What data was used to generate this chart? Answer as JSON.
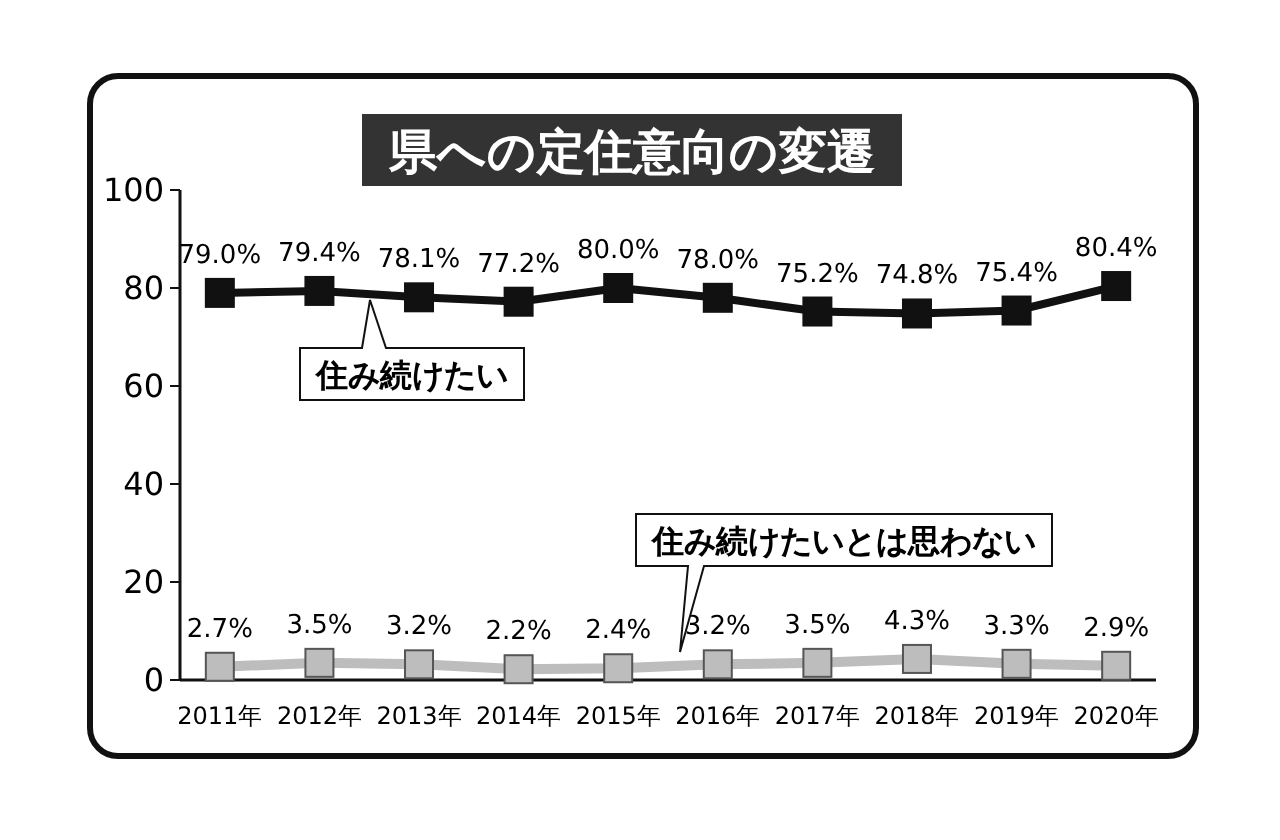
{
  "chart_data": {
    "type": "line",
    "title": "県への定住意向の変遷",
    "categories": [
      "2011年",
      "2012年",
      "2013年",
      "2014年",
      "2015年",
      "2016年",
      "2017年",
      "2018年",
      "2019年",
      "2020年"
    ],
    "ylim": [
      0,
      100
    ],
    "yticks": [
      0,
      20,
      40,
      60,
      80,
      100
    ],
    "grid": false,
    "marker": "square",
    "line_style": "solid",
    "series": [
      {
        "name": "住み続けたい",
        "color": "#111111",
        "values": [
          79.0,
          79.4,
          78.1,
          77.2,
          80.0,
          78.0,
          75.2,
          74.8,
          75.4,
          80.4
        ],
        "value_labels": [
          "79.0%",
          "79.4%",
          "78.1%",
          "77.2%",
          "80.0%",
          "78.0%",
          "75.2%",
          "74.8%",
          "75.4%",
          "80.4%"
        ]
      },
      {
        "name": "住み続けたいとは思わない",
        "color": "#bdbdbd",
        "values": [
          2.7,
          3.5,
          3.2,
          2.2,
          2.4,
          3.2,
          3.5,
          4.3,
          3.3,
          2.9
        ],
        "value_labels": [
          "2.7%",
          "3.5%",
          "3.2%",
          "2.2%",
          "2.4%",
          "3.2%",
          "3.5%",
          "4.3%",
          "3.3%",
          "2.9%"
        ]
      }
    ]
  }
}
